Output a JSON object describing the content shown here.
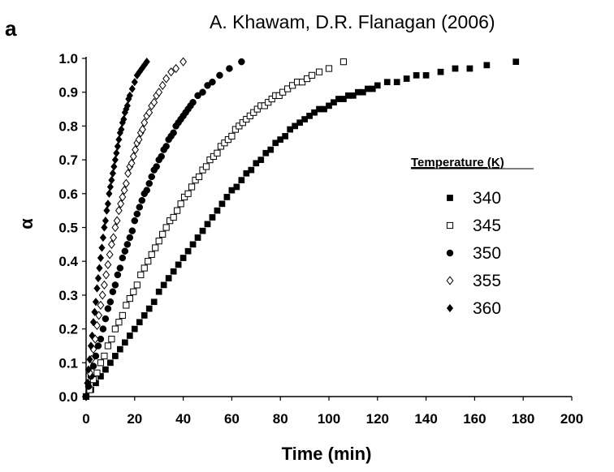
{
  "panel_label": "a",
  "citation": "A. Khawam, D.R. Flanagan (2006)",
  "chart_data": {
    "type": "scatter",
    "title": "",
    "xlabel": "Time (min)",
    "ylabel": "α",
    "xlim": [
      0,
      200
    ],
    "ylim": [
      0,
      1.0
    ],
    "x_ticks": [
      0,
      20,
      40,
      60,
      80,
      100,
      120,
      140,
      160,
      180,
      200
    ],
    "y_ticks": [
      0.0,
      0.1,
      0.2,
      0.3,
      0.4,
      0.5,
      0.6,
      0.7,
      0.8,
      0.9,
      1.0
    ],
    "x_tick_labels": [
      "0",
      "20",
      "40",
      "60",
      "80",
      "100",
      "120",
      "140",
      "160",
      "180",
      "200"
    ],
    "y_tick_labels": [
      "0.0",
      "0.1",
      "0.2",
      "0.3",
      "0.4",
      "0.5",
      "0.6",
      "0.7",
      "0.8",
      "0.9",
      "1.0"
    ],
    "grid": false,
    "legend": {
      "title": "Temperature (K)",
      "position": "right"
    },
    "series": [
      {
        "name": "340",
        "marker": "filled-square",
        "color": "#000000",
        "x": [
          0,
          2,
          4,
          6,
          8,
          10,
          12,
          14,
          16,
          18,
          20,
          22,
          24,
          26,
          28,
          30,
          32,
          34,
          36,
          38,
          40,
          42,
          44,
          46,
          48,
          50,
          52,
          54,
          56,
          58,
          60,
          62,
          64,
          66,
          68,
          70,
          72,
          74,
          76,
          78,
          80,
          82,
          84,
          86,
          88,
          90,
          92,
          94,
          96,
          98,
          100,
          102,
          104,
          106,
          108,
          110,
          112,
          114,
          116,
          118,
          120,
          124,
          128,
          132,
          136,
          140,
          146,
          152,
          158,
          165,
          177
        ],
        "y": [
          0,
          0.02,
          0.04,
          0.06,
          0.08,
          0.1,
          0.12,
          0.14,
          0.16,
          0.18,
          0.2,
          0.22,
          0.24,
          0.26,
          0.28,
          0.31,
          0.33,
          0.35,
          0.37,
          0.39,
          0.41,
          0.43,
          0.45,
          0.47,
          0.49,
          0.51,
          0.53,
          0.55,
          0.57,
          0.59,
          0.61,
          0.62,
          0.64,
          0.66,
          0.67,
          0.69,
          0.7,
          0.72,
          0.73,
          0.75,
          0.76,
          0.77,
          0.79,
          0.8,
          0.81,
          0.82,
          0.83,
          0.84,
          0.85,
          0.85,
          0.86,
          0.87,
          0.88,
          0.88,
          0.89,
          0.89,
          0.9,
          0.9,
          0.91,
          0.91,
          0.92,
          0.93,
          0.93,
          0.94,
          0.95,
          0.95,
          0.96,
          0.97,
          0.97,
          0.98,
          0.99
        ]
      },
      {
        "name": "345",
        "marker": "open-square",
        "color": "#000000",
        "x": [
          0,
          1.5,
          3,
          4.5,
          6,
          7.5,
          9,
          10.5,
          12,
          13.5,
          15,
          16.5,
          18,
          19.5,
          21,
          22.5,
          24,
          25.5,
          27,
          28.5,
          30,
          31.5,
          33,
          34.5,
          36,
          37.5,
          39,
          40.5,
          42,
          43.5,
          45,
          46.5,
          48,
          49.5,
          51,
          52.5,
          54,
          55.5,
          57,
          58.5,
          60,
          61.5,
          63,
          64.5,
          66,
          67.5,
          69,
          70.5,
          72,
          73.5,
          75,
          76.5,
          78,
          79.5,
          81,
          83,
          85,
          87,
          89,
          91,
          93,
          96,
          100,
          106
        ],
        "y": [
          0,
          0.02,
          0.05,
          0.07,
          0.1,
          0.12,
          0.15,
          0.17,
          0.2,
          0.22,
          0.24,
          0.27,
          0.29,
          0.31,
          0.33,
          0.36,
          0.38,
          0.4,
          0.42,
          0.44,
          0.46,
          0.48,
          0.5,
          0.52,
          0.53,
          0.55,
          0.57,
          0.59,
          0.6,
          0.62,
          0.64,
          0.65,
          0.67,
          0.68,
          0.7,
          0.71,
          0.72,
          0.74,
          0.75,
          0.76,
          0.77,
          0.79,
          0.8,
          0.81,
          0.82,
          0.83,
          0.84,
          0.85,
          0.86,
          0.86,
          0.87,
          0.88,
          0.89,
          0.89,
          0.9,
          0.91,
          0.92,
          0.93,
          0.93,
          0.94,
          0.95,
          0.96,
          0.97,
          0.99
        ]
      },
      {
        "name": "350",
        "marker": "filled-circle",
        "color": "#000000",
        "x": [
          0,
          1,
          2,
          3,
          4,
          5,
          6,
          7,
          8,
          9,
          10,
          11,
          12,
          13,
          14,
          15,
          16,
          17,
          18,
          19,
          20,
          21,
          22,
          23,
          24,
          25,
          26,
          27,
          28,
          29,
          30,
          31,
          32,
          33,
          34,
          35,
          36,
          37,
          38,
          39,
          40,
          41,
          42,
          43,
          44,
          46,
          48,
          50,
          52,
          55,
          59,
          64
        ],
        "y": [
          0,
          0.03,
          0.06,
          0.09,
          0.12,
          0.15,
          0.17,
          0.2,
          0.23,
          0.26,
          0.28,
          0.31,
          0.33,
          0.36,
          0.38,
          0.41,
          0.43,
          0.45,
          0.47,
          0.49,
          0.52,
          0.54,
          0.56,
          0.58,
          0.6,
          0.61,
          0.63,
          0.65,
          0.67,
          0.68,
          0.7,
          0.71,
          0.73,
          0.74,
          0.76,
          0.77,
          0.78,
          0.8,
          0.81,
          0.82,
          0.83,
          0.84,
          0.85,
          0.86,
          0.87,
          0.89,
          0.9,
          0.92,
          0.93,
          0.95,
          0.97,
          0.99
        ]
      },
      {
        "name": "355",
        "marker": "open-diamond",
        "color": "#000000",
        "x": [
          0,
          0.75,
          1.5,
          2.25,
          3,
          3.75,
          4.5,
          5.25,
          6,
          6.75,
          7.5,
          8.25,
          9,
          9.75,
          10.5,
          11.25,
          12,
          12.75,
          13.5,
          14.25,
          15,
          15.75,
          16.5,
          17.25,
          18,
          18.75,
          19.5,
          20.25,
          21,
          21.75,
          22.5,
          23.25,
          24,
          25,
          26,
          27,
          28,
          29,
          30,
          31.5,
          33,
          35,
          37,
          40
        ],
        "y": [
          0,
          0.04,
          0.07,
          0.11,
          0.14,
          0.17,
          0.21,
          0.24,
          0.27,
          0.3,
          0.33,
          0.36,
          0.39,
          0.42,
          0.45,
          0.47,
          0.5,
          0.52,
          0.55,
          0.57,
          0.59,
          0.61,
          0.63,
          0.66,
          0.68,
          0.69,
          0.71,
          0.73,
          0.75,
          0.76,
          0.78,
          0.79,
          0.81,
          0.83,
          0.84,
          0.86,
          0.87,
          0.89,
          0.9,
          0.92,
          0.94,
          0.96,
          0.97,
          0.99
        ]
      },
      {
        "name": "360",
        "marker": "filled-diamond",
        "color": "#000000",
        "x": [
          0,
          0.5,
          1,
          1.5,
          2,
          2.5,
          3,
          3.5,
          4,
          4.5,
          5,
          5.5,
          6,
          6.5,
          7,
          7.5,
          8,
          8.5,
          9,
          9.5,
          10,
          10.5,
          11,
          11.5,
          12,
          12.5,
          13,
          13.5,
          14,
          14.5,
          15,
          15.5,
          16,
          16.5,
          17,
          17.5,
          18,
          19,
          20,
          21,
          22,
          23,
          24,
          25
        ],
        "y": [
          0,
          0.04,
          0.08,
          0.11,
          0.15,
          0.18,
          0.22,
          0.25,
          0.28,
          0.32,
          0.35,
          0.38,
          0.41,
          0.44,
          0.47,
          0.5,
          0.52,
          0.55,
          0.57,
          0.6,
          0.62,
          0.64,
          0.66,
          0.68,
          0.7,
          0.72,
          0.74,
          0.76,
          0.78,
          0.79,
          0.81,
          0.82,
          0.84,
          0.85,
          0.86,
          0.88,
          0.89,
          0.91,
          0.93,
          0.95,
          0.96,
          0.97,
          0.98,
          0.99
        ]
      }
    ]
  }
}
